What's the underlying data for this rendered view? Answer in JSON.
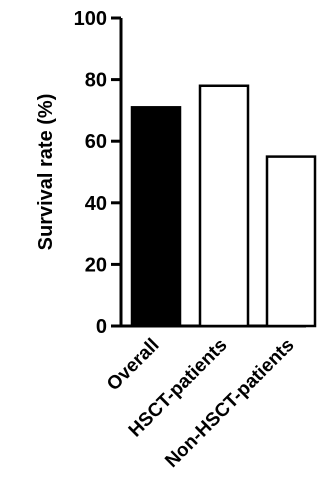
{
  "chart_data": {
    "type": "bar",
    "categories": [
      "Overall",
      "HSCT-patients",
      "Non-HSCT-patients"
    ],
    "values": [
      71,
      78,
      55
    ],
    "bar_colors": [
      "#000000",
      "#ffffff",
      "#ffffff"
    ],
    "ylabel": "Survival rate (%)",
    "ylim": [
      0,
      100
    ],
    "yticks": [
      0,
      20,
      40,
      60,
      80,
      100
    ],
    "grid": false,
    "legend": "none"
  }
}
